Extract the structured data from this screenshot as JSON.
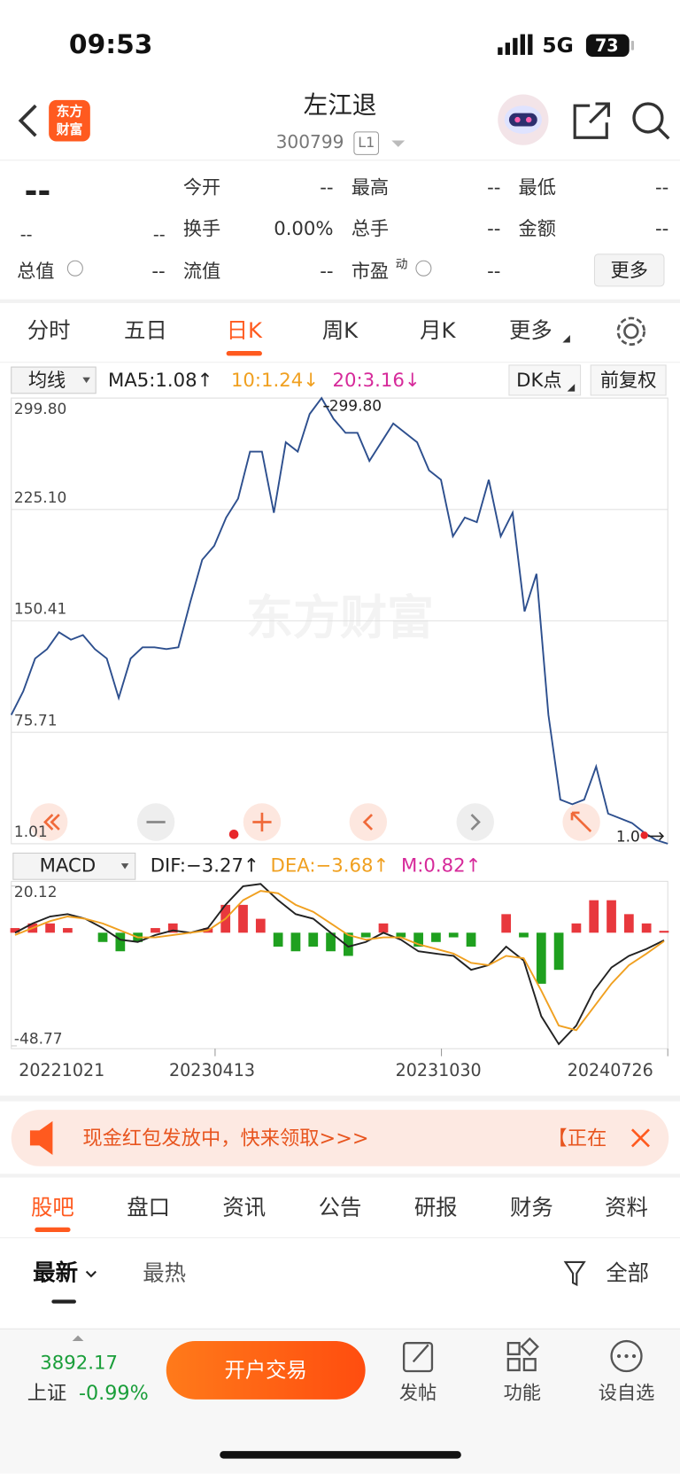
{
  "status": {
    "time": "09:53",
    "network": "5G",
    "battery": "73"
  },
  "header": {
    "logo": [
      "东方",
      "财富"
    ],
    "title": "左江退",
    "code": "300799",
    "badge": "L1"
  },
  "quote": {
    "price": "--",
    "change_a": "--",
    "change_b": "--",
    "cells": [
      [
        "今开",
        "--"
      ],
      [
        "最高",
        "--"
      ],
      [
        "最低",
        "--"
      ],
      [
        "换手",
        "0.00%"
      ],
      [
        "总手",
        "--"
      ],
      [
        "金额",
        "--"
      ],
      [
        "总值",
        "--"
      ],
      [
        "流值",
        "--"
      ],
      [
        "市盈",
        "--"
      ]
    ],
    "pe_sup": "动",
    "more": "更多"
  },
  "period_tabs": {
    "items": [
      "分时",
      "五日",
      "日K",
      "周K",
      "月K",
      "更多"
    ],
    "active": 2
  },
  "indicators": {
    "ma_select": "均线",
    "ma5": "MA5:1.08↑",
    "ma10": "10:1.24↓",
    "ma20": "20:3.16↓",
    "dk": "DK点",
    "adjust": "前复权"
  },
  "kline": {
    "type": "line",
    "color": "#2d4f8e",
    "grid": true,
    "ylim": [
      1.01,
      299.8
    ],
    "yticks": [
      {
        "value": 299.8,
        "label": "299.80"
      },
      {
        "value": 225.1,
        "label": "225.10"
      },
      150.41,
      75.71,
      1.01
    ],
    "values": [
      87.4,
      103.1,
      125.2,
      131.5,
      142.8,
      137.8,
      140.9,
      131.5,
      125.2,
      98.7,
      125.2,
      132.7,
      132.7,
      131.5,
      132.7,
      163,
      191.4,
      200.8,
      219.7,
      232.4,
      263.9,
      263.9,
      222.9,
      270.2,
      263.9,
      289.1,
      299.8,
      285.9,
      276.5,
      276.5,
      257.6,
      270.2,
      282.8,
      276.5,
      270.2,
      251.3,
      245,
      207.1,
      219.7,
      216.6,
      245,
      207.1,
      222.9,
      156.7,
      181.9,
      87.4,
      30.6,
      27.5,
      30.6,
      52.7,
      21.2,
      18,
      14.9,
      8.6,
      3.5,
      1.01
    ],
    "max_label": "299.80",
    "last_label": "1.0",
    "watermark": "东方财富"
  },
  "macd": {
    "type": "line",
    "select": "MACD",
    "dif_label": "DIF:−3.27↑",
    "dea_label": "DEA:−3.68↑",
    "m_label": "M:0.82↑",
    "ylim": [
      -48.77,
      20.12
    ],
    "yticks": [
      20.12,
      -48.77
    ],
    "series": [
      {
        "color": "#222222",
        "values": [
          0,
          4,
          7,
          8,
          6,
          2,
          -3,
          -4,
          -1,
          1,
          0,
          2,
          12,
          20,
          21,
          14,
          8,
          6,
          0,
          -6,
          -4,
          0,
          -3,
          -8,
          -9,
          -10,
          -16,
          -14,
          -6,
          -12,
          -36,
          -48,
          -40,
          -25,
          -15,
          -10,
          -7,
          -3.27
        ]
      },
      {
        "color": "#f0a020",
        "values": [
          -1,
          2,
          5,
          7,
          6,
          4,
          1,
          -2,
          -2,
          -1,
          0,
          1,
          6,
          14,
          18,
          17,
          12,
          9,
          4,
          -1,
          -3,
          -2,
          -2,
          -5,
          -7,
          -9,
          -13,
          -14,
          -10,
          -11,
          -25,
          -40,
          -42,
          -32,
          -22,
          -14,
          -9,
          -3.68
        ]
      }
    ],
    "histogram": {
      "up_color": "#e8383d",
      "down_color": "#1fa01f",
      "values": [
        2,
        4,
        4,
        2,
        0,
        -4,
        -8,
        -4,
        2,
        4,
        0,
        2,
        12,
        12,
        6,
        -6,
        -8,
        -6,
        -8,
        -10,
        -2,
        4,
        -2,
        -6,
        -4,
        -2,
        -6,
        0,
        8,
        -2,
        -22,
        -16,
        4,
        14,
        14,
        8,
        4,
        0.82
      ]
    }
  },
  "dates": [
    "20221021",
    "20230413",
    "20231030",
    "20240726"
  ],
  "banner": {
    "text": "现金红包发放中，快来领取>>>",
    "tail": "【正在"
  },
  "news_tabs": {
    "items": [
      "股吧",
      "盘口",
      "资讯",
      "公告",
      "研报",
      "财务",
      "资料"
    ],
    "active": 0
  },
  "filter": {
    "latest": "最新",
    "hot": "最热",
    "all": "全部"
  },
  "bottom": {
    "index_value": "3892.17",
    "index_name": "上证",
    "index_change": "-0.99%",
    "open_account": "开户交易",
    "actions": [
      "发帖",
      "功能",
      "设自选"
    ]
  }
}
